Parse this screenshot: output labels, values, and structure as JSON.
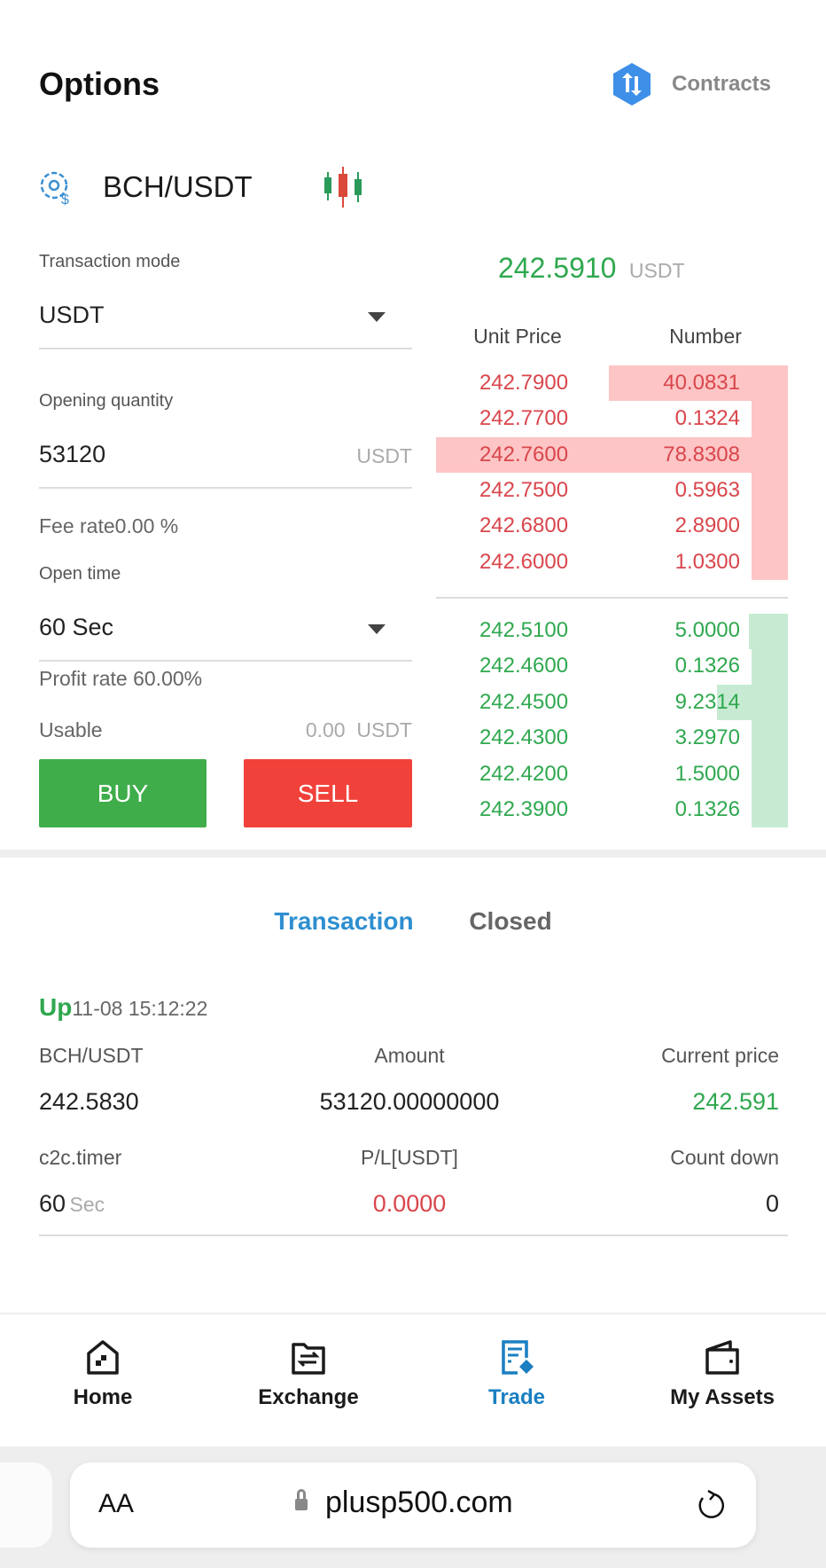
{
  "header": {
    "title": "Options",
    "contracts_label": "Contracts"
  },
  "pair": {
    "symbol": "BCH/USDT"
  },
  "form": {
    "transaction_mode_label": "Transaction mode",
    "transaction_mode_value": "USDT",
    "opening_quantity_label": "Opening quantity",
    "opening_quantity_value": "53120",
    "opening_quantity_unit": "USDT",
    "fee_rate": "Fee rate0.00 %",
    "open_time_label": "Open time",
    "open_time_value": "60 Sec",
    "profit_rate": "Profit rate 60.00%",
    "usable_label": "Usable",
    "usable_value": "0.00",
    "usable_unit": "USDT",
    "buy_label": "BUY",
    "sell_label": "SELL"
  },
  "orderbook": {
    "last_price": "242.5910",
    "last_unit": "USDT",
    "col_price": "Unit Price",
    "col_number": "Number",
    "asks": [
      {
        "price": "242.7900",
        "number": "40.0831"
      },
      {
        "price": "242.7700",
        "number": "0.1324"
      },
      {
        "price": "242.7600",
        "number": "78.8308"
      },
      {
        "price": "242.7500",
        "number": "0.5963"
      },
      {
        "price": "242.6800",
        "number": "2.8900"
      },
      {
        "price": "242.6000",
        "number": "1.0300"
      }
    ],
    "bids": [
      {
        "price": "242.5100",
        "number": "5.0000"
      },
      {
        "price": "242.4600",
        "number": "0.1326"
      },
      {
        "price": "242.4500",
        "number": "9.2314"
      },
      {
        "price": "242.4300",
        "number": "3.2970"
      },
      {
        "price": "242.4200",
        "number": "1.5000"
      },
      {
        "price": "242.3900",
        "number": "0.1326"
      }
    ],
    "colors": {
      "ask": "#d9464c",
      "bid": "#2fa84f"
    }
  },
  "tabs": {
    "transaction": "Transaction",
    "closed": "Closed"
  },
  "position": {
    "direction": "Up",
    "time": "11-08 15:12:22",
    "pair_label": "BCH/USDT",
    "amount_label": "Amount",
    "current_price_label": "Current price",
    "open_price": "242.5830",
    "amount": "53120.00000000",
    "current_price": "242.591",
    "timer_label": "c2c.timer",
    "pl_label": "P/L[USDT]",
    "countdown_label": "Count down",
    "timer_value": "60",
    "timer_unit": "Sec",
    "pl_value": "0.0000",
    "countdown_value": "0"
  },
  "nav": {
    "items": [
      {
        "label": "Home"
      },
      {
        "label": "Exchange"
      },
      {
        "label": "Trade",
        "active": true
      },
      {
        "label": "My Assets"
      }
    ],
    "active_color": "#1a7fc1"
  },
  "browser": {
    "text_size": "AA",
    "url": "plusp500.com"
  }
}
